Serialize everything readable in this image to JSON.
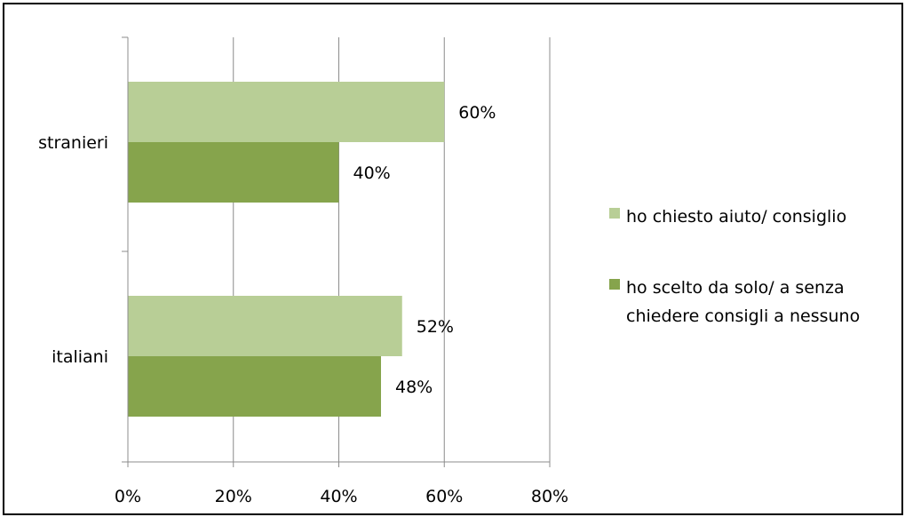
{
  "chart_data": {
    "type": "bar",
    "orientation": "horizontal",
    "categories": [
      "stranieri",
      "italiani"
    ],
    "series": [
      {
        "name": "ho chiesto aiuto/ consiglio",
        "values": [
          60,
          52
        ],
        "labels": [
          "60%",
          "52%"
        ],
        "color": "#b8ce96"
      },
      {
        "name": "ho scelto da solo/ a senza chiedere consigli a nessuno",
        "name_lines": [
          "ho scelto da solo/ a senza",
          "chiedere consigli a nessuno"
        ],
        "values": [
          40,
          48
        ],
        "labels": [
          "40%",
          "48%"
        ],
        "color": "#86a44c"
      }
    ],
    "xlim": [
      0,
      80
    ],
    "xticks": [
      0,
      20,
      40,
      60,
      80
    ],
    "xtick_labels": [
      "0%",
      "20%",
      "40%",
      "60%",
      "80%"
    ],
    "grid": true,
    "legend": "right"
  }
}
